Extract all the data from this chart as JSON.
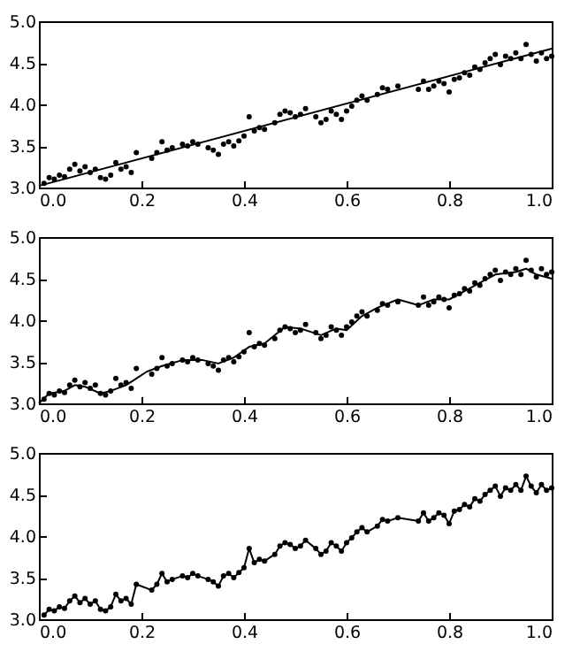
{
  "chart_data": [
    {
      "type": "scatter",
      "xlim": [
        0,
        1
      ],
      "ylim": [
        3,
        5
      ],
      "xticks": [
        {
          "value": 0,
          "label": "0.0"
        },
        {
          "value": 0.2,
          "label": "0.2"
        },
        {
          "value": 0.4,
          "label": "0.4"
        },
        {
          "value": 0.6,
          "label": "0.6"
        },
        {
          "value": 0.8,
          "label": "0.8"
        },
        {
          "value": 1,
          "label": "1.0"
        }
      ],
      "yticks": [
        {
          "value": 3,
          "label": "3.0"
        },
        {
          "value": 3.5,
          "label": "3.5"
        },
        {
          "value": 4,
          "label": "4.0"
        },
        {
          "value": 4.5,
          "label": "4.5"
        },
        {
          "value": 5,
          "label": "5.0"
        }
      ],
      "grid": false,
      "series": [
        {
          "type": "scatter",
          "marker": "circle",
          "color": "#000000",
          "x": [
            0.01,
            0.02,
            0.03,
            0.04,
            0.05,
            0.06,
            0.07,
            0.08,
            0.09,
            0.1,
            0.11,
            0.12,
            0.13,
            0.14,
            0.15,
            0.16,
            0.17,
            0.18,
            0.19,
            0.22,
            0.23,
            0.24,
            0.25,
            0.26,
            0.28,
            0.29,
            0.3,
            0.31,
            0.33,
            0.34,
            0.35,
            0.36,
            0.37,
            0.38,
            0.39,
            0.4,
            0.41,
            0.42,
            0.43,
            0.44,
            0.46,
            0.47,
            0.48,
            0.49,
            0.5,
            0.51,
            0.52,
            0.54,
            0.55,
            0.56,
            0.57,
            0.58,
            0.59,
            0.6,
            0.61,
            0.62,
            0.63,
            0.64,
            0.66,
            0.67,
            0.68,
            0.7,
            0.74,
            0.75,
            0.76,
            0.77,
            0.78,
            0.79,
            0.8,
            0.81,
            0.82,
            0.83,
            0.84,
            0.85,
            0.86,
            0.87,
            0.88,
            0.89,
            0.9,
            0.91,
            0.92,
            0.93,
            0.94,
            0.95,
            0.96,
            0.97,
            0.98,
            0.99,
            1.0
          ],
          "values": [
            3.05,
            3.12,
            3.1,
            3.15,
            3.13,
            3.22,
            3.28,
            3.2,
            3.25,
            3.18,
            3.22,
            3.12,
            3.1,
            3.15,
            3.3,
            3.22,
            3.25,
            3.18,
            3.42,
            3.35,
            3.42,
            3.55,
            3.45,
            3.48,
            3.52,
            3.5,
            3.55,
            3.52,
            3.48,
            3.45,
            3.4,
            3.52,
            3.55,
            3.5,
            3.56,
            3.62,
            3.85,
            3.68,
            3.72,
            3.7,
            3.78,
            3.88,
            3.92,
            3.9,
            3.85,
            3.88,
            3.95,
            3.85,
            3.78,
            3.82,
            3.92,
            3.88,
            3.82,
            3.92,
            3.98,
            4.05,
            4.1,
            4.05,
            4.12,
            4.2,
            4.18,
            4.22,
            4.18,
            4.28,
            4.18,
            4.22,
            4.28,
            4.25,
            4.15,
            4.3,
            4.32,
            4.38,
            4.35,
            4.45,
            4.42,
            4.5,
            4.55,
            4.6,
            4.48,
            4.58,
            4.55,
            4.62,
            4.55,
            4.72,
            4.6,
            4.52,
            4.62,
            4.55,
            4.58
          ]
        },
        {
          "type": "line",
          "marker": "none",
          "line_style": "solid",
          "color": "#000000",
          "x": [
            0,
            1
          ],
          "values": [
            3.02,
            4.67
          ]
        }
      ]
    },
    {
      "type": "scatter",
      "xlim": [
        0,
        1
      ],
      "ylim": [
        3,
        5
      ],
      "xticks": [
        {
          "value": 0,
          "label": "0.0"
        },
        {
          "value": 0.2,
          "label": "0.2"
        },
        {
          "value": 0.4,
          "label": "0.4"
        },
        {
          "value": 0.6,
          "label": "0.6"
        },
        {
          "value": 0.8,
          "label": "0.8"
        },
        {
          "value": 1,
          "label": "1.0"
        }
      ],
      "yticks": [
        {
          "value": 3,
          "label": "3.0"
        },
        {
          "value": 3.5,
          "label": "3.5"
        },
        {
          "value": 4,
          "label": "4.0"
        },
        {
          "value": 4.5,
          "label": "4.5"
        },
        {
          "value": 5,
          "label": "5.0"
        }
      ],
      "grid": false,
      "series": [
        {
          "type": "scatter",
          "marker": "circle",
          "color": "#000000",
          "x": [
            0.01,
            0.02,
            0.03,
            0.04,
            0.05,
            0.06,
            0.07,
            0.08,
            0.09,
            0.1,
            0.11,
            0.12,
            0.13,
            0.14,
            0.15,
            0.16,
            0.17,
            0.18,
            0.19,
            0.22,
            0.23,
            0.24,
            0.25,
            0.26,
            0.28,
            0.29,
            0.3,
            0.31,
            0.33,
            0.34,
            0.35,
            0.36,
            0.37,
            0.38,
            0.39,
            0.4,
            0.41,
            0.42,
            0.43,
            0.44,
            0.46,
            0.47,
            0.48,
            0.49,
            0.5,
            0.51,
            0.52,
            0.54,
            0.55,
            0.56,
            0.57,
            0.58,
            0.59,
            0.6,
            0.61,
            0.62,
            0.63,
            0.64,
            0.66,
            0.67,
            0.68,
            0.7,
            0.74,
            0.75,
            0.76,
            0.77,
            0.78,
            0.79,
            0.8,
            0.81,
            0.82,
            0.83,
            0.84,
            0.85,
            0.86,
            0.87,
            0.88,
            0.89,
            0.9,
            0.91,
            0.92,
            0.93,
            0.94,
            0.95,
            0.96,
            0.97,
            0.98,
            0.99,
            1.0
          ],
          "values": [
            3.05,
            3.12,
            3.1,
            3.15,
            3.13,
            3.22,
            3.28,
            3.2,
            3.25,
            3.18,
            3.22,
            3.12,
            3.1,
            3.15,
            3.3,
            3.22,
            3.25,
            3.18,
            3.42,
            3.35,
            3.42,
            3.55,
            3.45,
            3.48,
            3.52,
            3.5,
            3.55,
            3.52,
            3.48,
            3.45,
            3.4,
            3.52,
            3.55,
            3.5,
            3.56,
            3.62,
            3.85,
            3.68,
            3.72,
            3.7,
            3.78,
            3.88,
            3.92,
            3.9,
            3.85,
            3.88,
            3.95,
            3.85,
            3.78,
            3.82,
            3.92,
            3.88,
            3.82,
            3.92,
            3.98,
            4.05,
            4.1,
            4.05,
            4.12,
            4.2,
            4.18,
            4.22,
            4.18,
            4.28,
            4.18,
            4.22,
            4.28,
            4.25,
            4.15,
            4.3,
            4.32,
            4.38,
            4.35,
            4.45,
            4.42,
            4.5,
            4.55,
            4.6,
            4.48,
            4.58,
            4.55,
            4.62,
            4.55,
            4.72,
            4.6,
            4.52,
            4.62,
            4.55,
            4.58
          ]
        },
        {
          "type": "line",
          "marker": "none",
          "line_style": "solid",
          "color": "#000000",
          "x": [
            0,
            0.02,
            0.05,
            0.07,
            0.09,
            0.12,
            0.14,
            0.17,
            0.19,
            0.21,
            0.24,
            0.28,
            0.32,
            0.35,
            0.38,
            0.41,
            0.44,
            0.48,
            0.51,
            0.55,
            0.58,
            0.6,
            0.63,
            0.66,
            0.7,
            0.74,
            0.77,
            0.8,
            0.83,
            0.86,
            0.89,
            0.93,
            0.95,
            0.97,
            1.0
          ],
          "values": [
            3.0,
            3.12,
            3.15,
            3.22,
            3.2,
            3.12,
            3.15,
            3.22,
            3.3,
            3.38,
            3.45,
            3.52,
            3.52,
            3.48,
            3.55,
            3.68,
            3.72,
            3.92,
            3.9,
            3.82,
            3.9,
            3.88,
            4.05,
            4.15,
            4.25,
            4.18,
            4.25,
            4.25,
            4.35,
            4.45,
            4.55,
            4.58,
            4.62,
            4.55,
            4.5
          ]
        }
      ]
    },
    {
      "type": "scatter",
      "xlim": [
        0,
        1
      ],
      "ylim": [
        3,
        5
      ],
      "xticks": [
        {
          "value": 0,
          "label": "0.0"
        },
        {
          "value": 0.2,
          "label": "0.2"
        },
        {
          "value": 0.4,
          "label": "0.4"
        },
        {
          "value": 0.6,
          "label": "0.6"
        },
        {
          "value": 0.8,
          "label": "0.8"
        },
        {
          "value": 1,
          "label": "1.0"
        }
      ],
      "yticks": [
        {
          "value": 3,
          "label": "3.0"
        },
        {
          "value": 3.5,
          "label": "3.5"
        },
        {
          "value": 4,
          "label": "4.0"
        },
        {
          "value": 4.5,
          "label": "4.5"
        },
        {
          "value": 5,
          "label": "5.0"
        }
      ],
      "grid": false,
      "series": [
        {
          "type": "scatter",
          "marker": "circle",
          "color": "#000000",
          "x": [
            0.01,
            0.02,
            0.03,
            0.04,
            0.05,
            0.06,
            0.07,
            0.08,
            0.09,
            0.1,
            0.11,
            0.12,
            0.13,
            0.14,
            0.15,
            0.16,
            0.17,
            0.18,
            0.19,
            0.22,
            0.23,
            0.24,
            0.25,
            0.26,
            0.28,
            0.29,
            0.3,
            0.31,
            0.33,
            0.34,
            0.35,
            0.36,
            0.37,
            0.38,
            0.39,
            0.4,
            0.41,
            0.42,
            0.43,
            0.44,
            0.46,
            0.47,
            0.48,
            0.49,
            0.5,
            0.51,
            0.52,
            0.54,
            0.55,
            0.56,
            0.57,
            0.58,
            0.59,
            0.6,
            0.61,
            0.62,
            0.63,
            0.64,
            0.66,
            0.67,
            0.68,
            0.7,
            0.74,
            0.75,
            0.76,
            0.77,
            0.78,
            0.79,
            0.8,
            0.81,
            0.82,
            0.83,
            0.84,
            0.85,
            0.86,
            0.87,
            0.88,
            0.89,
            0.9,
            0.91,
            0.92,
            0.93,
            0.94,
            0.95,
            0.96,
            0.97,
            0.98,
            0.99,
            1.0
          ],
          "values": [
            3.05,
            3.12,
            3.1,
            3.15,
            3.13,
            3.22,
            3.28,
            3.2,
            3.25,
            3.18,
            3.22,
            3.12,
            3.1,
            3.15,
            3.3,
            3.22,
            3.25,
            3.18,
            3.42,
            3.35,
            3.42,
            3.55,
            3.45,
            3.48,
            3.52,
            3.5,
            3.55,
            3.52,
            3.48,
            3.45,
            3.4,
            3.52,
            3.55,
            3.5,
            3.56,
            3.62,
            3.85,
            3.68,
            3.72,
            3.7,
            3.78,
            3.88,
            3.92,
            3.9,
            3.85,
            3.88,
            3.95,
            3.85,
            3.78,
            3.82,
            3.92,
            3.88,
            3.82,
            3.92,
            3.98,
            4.05,
            4.1,
            4.05,
            4.12,
            4.2,
            4.18,
            4.22,
            4.18,
            4.28,
            4.18,
            4.22,
            4.28,
            4.25,
            4.15,
            4.3,
            4.32,
            4.38,
            4.35,
            4.45,
            4.42,
            4.5,
            4.55,
            4.6,
            4.48,
            4.58,
            4.55,
            4.62,
            4.55,
            4.72,
            4.6,
            4.52,
            4.62,
            4.55,
            4.58
          ]
        },
        {
          "type": "line",
          "marker": "none",
          "line_style": "solid",
          "color": "#000000",
          "x": [
            0.01,
            0.02,
            0.03,
            0.04,
            0.05,
            0.06,
            0.07,
            0.08,
            0.09,
            0.1,
            0.11,
            0.12,
            0.13,
            0.14,
            0.15,
            0.16,
            0.17,
            0.18,
            0.19,
            0.22,
            0.23,
            0.24,
            0.25,
            0.26,
            0.28,
            0.29,
            0.3,
            0.31,
            0.33,
            0.34,
            0.35,
            0.36,
            0.37,
            0.38,
            0.39,
            0.4,
            0.41,
            0.42,
            0.43,
            0.44,
            0.46,
            0.47,
            0.48,
            0.49,
            0.5,
            0.51,
            0.52,
            0.54,
            0.55,
            0.56,
            0.57,
            0.58,
            0.59,
            0.6,
            0.61,
            0.62,
            0.63,
            0.64,
            0.66,
            0.67,
            0.68,
            0.7,
            0.74,
            0.75,
            0.76,
            0.77,
            0.78,
            0.79,
            0.8,
            0.81,
            0.82,
            0.83,
            0.84,
            0.85,
            0.86,
            0.87,
            0.88,
            0.89,
            0.9,
            0.91,
            0.92,
            0.93,
            0.94,
            0.95,
            0.96,
            0.97,
            0.98,
            0.99,
            1.0
          ],
          "values": [
            3.05,
            3.12,
            3.1,
            3.15,
            3.13,
            3.22,
            3.28,
            3.2,
            3.25,
            3.18,
            3.22,
            3.12,
            3.1,
            3.15,
            3.3,
            3.22,
            3.25,
            3.18,
            3.42,
            3.35,
            3.42,
            3.55,
            3.45,
            3.48,
            3.52,
            3.5,
            3.55,
            3.52,
            3.48,
            3.45,
            3.4,
            3.52,
            3.55,
            3.5,
            3.56,
            3.62,
            3.85,
            3.68,
            3.72,
            3.7,
            3.78,
            3.88,
            3.92,
            3.9,
            3.85,
            3.88,
            3.95,
            3.85,
            3.78,
            3.82,
            3.92,
            3.88,
            3.82,
            3.92,
            3.98,
            4.05,
            4.1,
            4.05,
            4.12,
            4.2,
            4.18,
            4.22,
            4.18,
            4.28,
            4.18,
            4.22,
            4.28,
            4.25,
            4.15,
            4.3,
            4.32,
            4.38,
            4.35,
            4.45,
            4.42,
            4.5,
            4.55,
            4.6,
            4.48,
            4.58,
            4.55,
            4.62,
            4.55,
            4.72,
            4.6,
            4.52,
            4.62,
            4.55,
            4.58
          ]
        }
      ]
    }
  ]
}
